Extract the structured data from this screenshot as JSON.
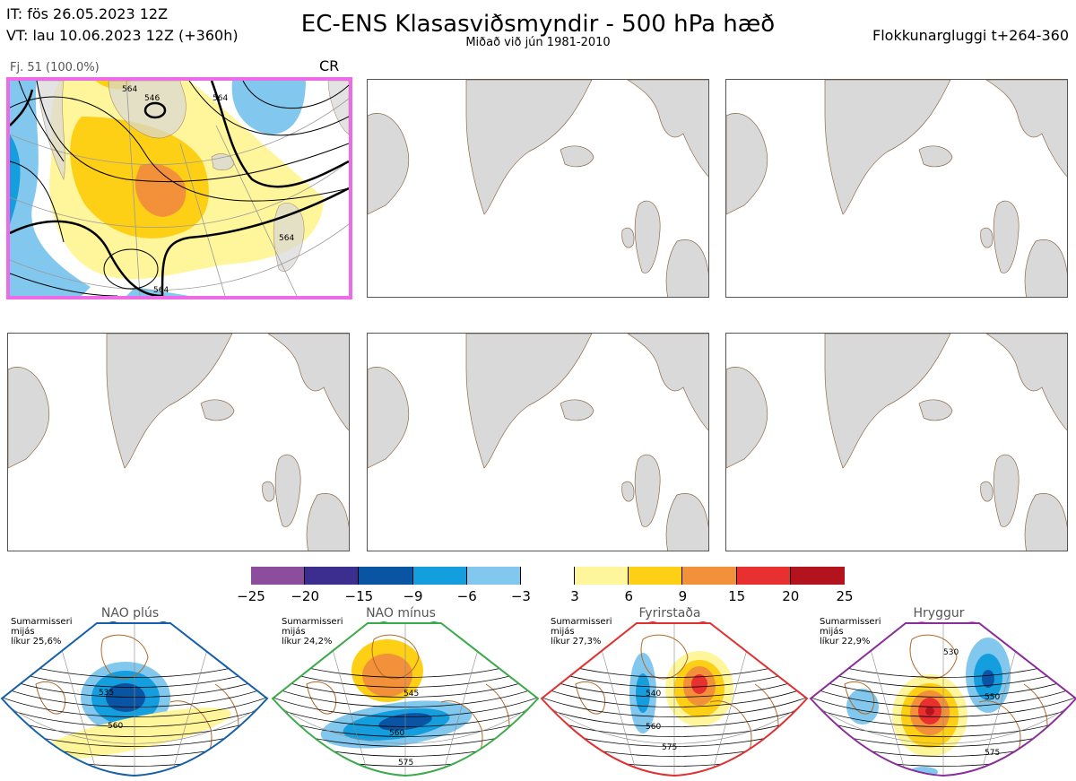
{
  "header": {
    "init_time": "IT: fös 26.05.2023 12Z",
    "valid_time": "VT: lau 10.06.2023 12Z  (+360h)",
    "title": "EC-ENS Klasasviðsmyndir - 500 hPa hæð",
    "subtitle": "Miðað við jún 1981-2010",
    "window": "Flokkunargluggi t+264-360"
  },
  "panel1": {
    "label": "Fj. 51 (100.0%)",
    "regime_code": "CR",
    "contour_labels": [
      "546",
      "564",
      "564",
      "564",
      "564"
    ]
  },
  "colorbar": {
    "ticks": [
      "−25",
      "−20",
      "−15",
      "−9",
      "−6",
      "−3",
      "3",
      "6",
      "9",
      "15",
      "20",
      "25"
    ],
    "colors": [
      "#8c4e9c",
      "#3b2e8f",
      "#0a55a3",
      "#159ede",
      "#82c8ee",
      "#ffffff",
      "#fff59a",
      "#fdd016",
      "#f3903a",
      "#e93030",
      "#b3131c"
    ]
  },
  "regimes": [
    {
      "name": "NAO plús",
      "info": "Sumarmisseri\nmijás\nlíkur 25,6%",
      "dot_color": "#0a55a3",
      "frame_color": "#1560a8",
      "labels": [
        "535",
        "560"
      ]
    },
    {
      "name": "NAO mínus",
      "info": "Sumarmisseri\nmijás\nlíkur 24,2%",
      "dot_color": "#23aa50",
      "frame_color": "#3aaa4a",
      "labels": [
        "545",
        "560",
        "575"
      ]
    },
    {
      "name": "Fyrirstaða",
      "info": "Sumarmisseri\nmijás\nlíkur 27,3%",
      "dot_color": "#e82525",
      "frame_color": "#e03030",
      "labels": [
        "540",
        "560",
        "575"
      ]
    },
    {
      "name": "Hryggur",
      "info": "Sumarmisseri\nmijás\nlíkur 22,9%",
      "dot_color": "#ee6be8",
      "frame_color": "#8a2d9a",
      "labels": [
        "530",
        "550",
        "575"
      ]
    }
  ]
}
